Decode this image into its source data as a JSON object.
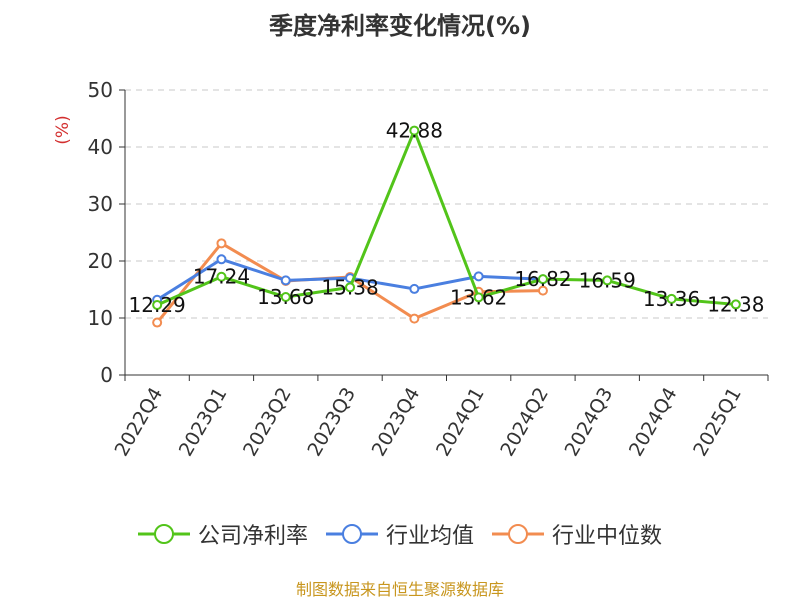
{
  "chart_data": {
    "type": "line",
    "title": "季度净利率变化情况(%)",
    "ylabel": "(%)",
    "xlabel": "",
    "categories": [
      "2022Q4",
      "2023Q1",
      "2023Q2",
      "2023Q3",
      "2023Q4",
      "2024Q1",
      "2024Q2",
      "2024Q3",
      "2024Q4",
      "2025Q1"
    ],
    "ylim": [
      0,
      50
    ],
    "yticks": [
      0,
      10,
      20,
      30,
      40,
      50
    ],
    "grid": true,
    "legend_position": "bottom",
    "series": [
      {
        "name": "公司净利率",
        "color": "#52c41a",
        "values": [
          12.29,
          17.24,
          13.68,
          15.38,
          42.88,
          13.62,
          16.82,
          16.59,
          13.36,
          12.38
        ],
        "labels": true
      },
      {
        "name": "行业均值",
        "color": "#4a7fe0",
        "values": [
          13.2,
          20.3,
          16.6,
          17.0,
          15.1,
          17.3,
          16.8,
          null,
          null,
          null
        ],
        "labels": false
      },
      {
        "name": "行业中位数",
        "color": "#f28c50",
        "values": [
          9.2,
          23.1,
          16.5,
          17.2,
          9.9,
          14.6,
          14.8,
          null,
          null,
          null
        ],
        "labels": false
      }
    ]
  },
  "source": "制图数据来自恒生聚源数据库"
}
